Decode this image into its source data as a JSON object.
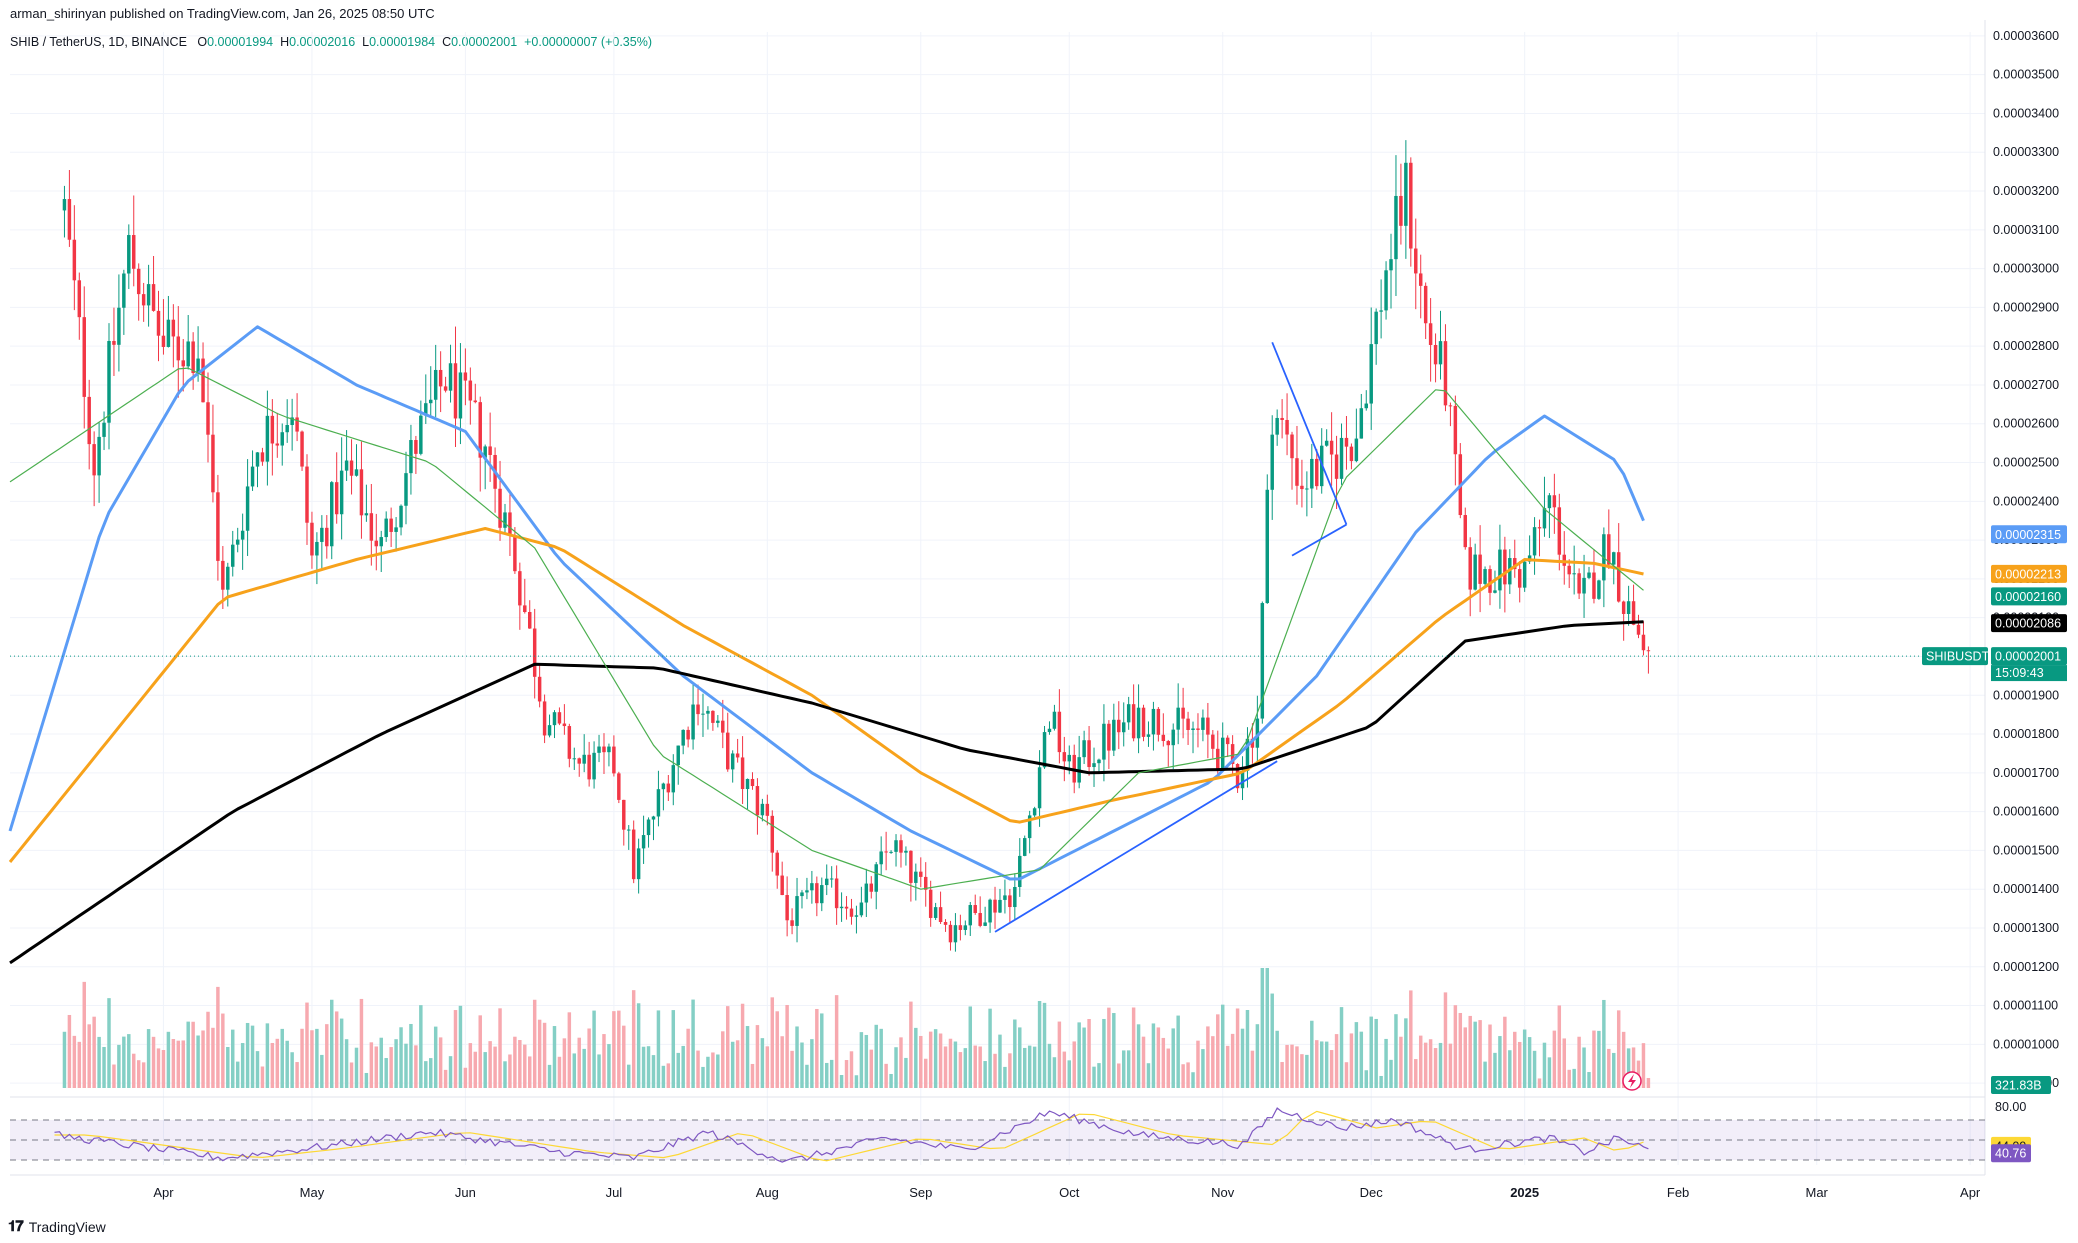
{
  "header": {
    "published_by": "arman_shirinyan published on TradingView.com, Jan 26, 2025 08:50 UTC"
  },
  "symbol_bar": {
    "symbol": "SHIB / TetherUS, 1D, BINANCE",
    "open_label": "O",
    "open": "0.00001994",
    "high_label": "H",
    "high": "0.00002016",
    "low_label": "L",
    "low": "0.00001984",
    "close_label": "C",
    "close": "0.00002001",
    "change": "+0.00000007 (+0.35%)"
  },
  "footer": {
    "brand": "TradingView"
  },
  "colors": {
    "up": "#089981",
    "down": "#f23645",
    "up_vol": "#84cfc5",
    "down_vol": "#f7a9af",
    "ma_blue": "#5b9cf6",
    "ma_orange": "#f7a21b",
    "ma_black": "#000000",
    "ma_green": "#4caf50",
    "rsi_line": "#7e57c2",
    "rsi_ma": "#fdd835",
    "trendline": "#2962ff"
  },
  "chart_data": {
    "type": "candlestick",
    "price_axis": {
      "range": [
        8.9e-06,
        3.61e-05
      ],
      "ticks": [
        "0.00003600",
        "0.00003500",
        "0.00003400",
        "0.00003300",
        "0.00003200",
        "0.00003100",
        "0.00003000",
        "0.00002900",
        "0.00002800",
        "0.00002700",
        "0.00002600",
        "0.00002500",
        "0.00002400",
        "0.00002300",
        "0.00002200",
        "0.00002100",
        "0.00002000",
        "0.00001900",
        "0.00001800",
        "0.00001700",
        "0.00001600",
        "0.00001500",
        "0.00001400",
        "0.00001300",
        "0.00001200",
        "0.00001100",
        "0.00001000",
        "0.00000900"
      ]
    },
    "time_axis": {
      "labels": [
        "Apr",
        "May",
        "Jun",
        "Jul",
        "Aug",
        "Sep",
        "Oct",
        "Nov",
        "Dec",
        "2025",
        "Feb",
        "Mar",
        "Apr"
      ],
      "bold": "2025"
    },
    "price_keypoints": [
      [
        "2024-03-12",
        3.15e-05
      ],
      [
        "2024-03-18",
        2.5e-05
      ],
      [
        "2024-03-25",
        3.05e-05
      ],
      [
        "2024-04-01",
        2.8e-05
      ],
      [
        "2024-04-08",
        2.8e-05
      ],
      [
        "2024-04-13",
        2.15e-05
      ],
      [
        "2024-04-20",
        2.55e-05
      ],
      [
        "2024-04-27",
        2.65e-05
      ],
      [
        "2024-05-01",
        2.25e-05
      ],
      [
        "2024-05-08",
        2.48e-05
      ],
      [
        "2024-05-15",
        2.28e-05
      ],
      [
        "2024-05-22",
        2.55e-05
      ],
      [
        "2024-05-28",
        2.72e-05
      ],
      [
        "2024-06-05",
        2.55e-05
      ],
      [
        "2024-06-11",
        2.25e-05
      ],
      [
        "2024-06-17",
        1.85e-05
      ],
      [
        "2024-06-24",
        1.72e-05
      ],
      [
        "2024-07-01",
        1.72e-05
      ],
      [
        "2024-07-05",
        1.45e-05
      ],
      [
        "2024-07-12",
        1.7e-05
      ],
      [
        "2024-07-18",
        1.9e-05
      ],
      [
        "2024-07-25",
        1.72e-05
      ],
      [
        "2024-08-01",
        1.58e-05
      ],
      [
        "2024-08-05",
        1.32e-05
      ],
      [
        "2024-08-12",
        1.4e-05
      ],
      [
        "2024-08-20",
        1.35e-05
      ],
      [
        "2024-08-26",
        1.52e-05
      ],
      [
        "2024-09-01",
        1.4e-05
      ],
      [
        "2024-09-07",
        1.3e-05
      ],
      [
        "2024-09-14",
        1.35e-05
      ],
      [
        "2024-09-20",
        1.4e-05
      ],
      [
        "2024-09-27",
        1.85e-05
      ],
      [
        "2024-10-01",
        1.7e-05
      ],
      [
        "2024-10-08",
        1.78e-05
      ],
      [
        "2024-10-15",
        1.85e-05
      ],
      [
        "2024-10-22",
        1.82e-05
      ],
      [
        "2024-10-28",
        1.8e-05
      ],
      [
        "2024-11-04",
        1.7e-05
      ],
      [
        "2024-11-08",
        1.85e-05
      ],
      [
        "2024-11-11",
        2.65e-05
      ],
      [
        "2024-11-17",
        2.45e-05
      ],
      [
        "2024-11-23",
        2.5e-05
      ],
      [
        "2024-11-28",
        2.58e-05
      ],
      [
        "2024-12-04",
        3e-05
      ],
      [
        "2024-12-08",
        3.2e-05
      ],
      [
        "2024-12-12",
        2.85e-05
      ],
      [
        "2024-12-16",
        2.7e-05
      ],
      [
        "2024-12-20",
        2.22e-05
      ],
      [
        "2024-12-26",
        2.22e-05
      ],
      [
        "2025-01-01",
        2.22e-05
      ],
      [
        "2025-01-06",
        2.4e-05
      ],
      [
        "2025-01-12",
        2.12e-05
      ],
      [
        "2025-01-18",
        2.3e-05
      ],
      [
        "2025-01-21",
        2.15e-05
      ],
      [
        "2025-01-26",
        2e-05
      ]
    ],
    "moving_averages": [
      {
        "color_key": "ma_blue",
        "last_value": "0.00002315",
        "points": [
          [
            "2024-03-01",
            1.55e-05
          ],
          [
            "2024-03-20",
            2.35e-05
          ],
          [
            "2024-04-05",
            2.7e-05
          ],
          [
            "2024-04-20",
            2.85e-05
          ],
          [
            "2024-05-10",
            2.7e-05
          ],
          [
            "2024-06-01",
            2.58e-05
          ],
          [
            "2024-06-20",
            2.25e-05
          ],
          [
            "2024-07-15",
            1.95e-05
          ],
          [
            "2024-08-10",
            1.7e-05
          ],
          [
            "2024-08-30",
            1.55e-05
          ],
          [
            "2024-09-20",
            1.42e-05
          ],
          [
            "2024-10-10",
            1.55e-05
          ],
          [
            "2024-10-30",
            1.68e-05
          ],
          [
            "2024-11-20",
            1.95e-05
          ],
          [
            "2024-12-10",
            2.32e-05
          ],
          [
            "2024-12-25",
            2.52e-05
          ],
          [
            "2025-01-05",
            2.62e-05
          ],
          [
            "2025-01-20",
            2.5e-05
          ],
          [
            "2025-01-26",
            2.32e-05
          ]
        ]
      },
      {
        "color_key": "ma_orange",
        "last_value": "0.00002213",
        "points": [
          [
            "2024-03-01",
            1.47e-05
          ],
          [
            "2024-04-13",
            2.15e-05
          ],
          [
            "2024-05-10",
            2.25e-05
          ],
          [
            "2024-06-05",
            2.33e-05
          ],
          [
            "2024-06-20",
            2.28e-05
          ],
          [
            "2024-07-15",
            2.08e-05
          ],
          [
            "2024-08-10",
            1.9e-05
          ],
          [
            "2024-09-01",
            1.7e-05
          ],
          [
            "2024-09-20",
            1.57e-05
          ],
          [
            "2024-10-10",
            1.63e-05
          ],
          [
            "2024-11-05",
            1.7e-05
          ],
          [
            "2024-11-25",
            1.88e-05
          ],
          [
            "2024-12-15",
            2.1e-05
          ],
          [
            "2025-01-01",
            2.25e-05
          ],
          [
            "2025-01-15",
            2.24e-05
          ],
          [
            "2025-01-26",
            2.21e-05
          ]
        ]
      },
      {
        "color_key": "ma_black",
        "last_value": "0.00002086",
        "points": [
          [
            "2024-03-01",
            1.21e-05
          ],
          [
            "2024-04-15",
            1.6e-05
          ],
          [
            "2024-05-15",
            1.8e-05
          ],
          [
            "2024-06-15",
            1.98e-05
          ],
          [
            "2024-07-10",
            1.97e-05
          ],
          [
            "2024-08-10",
            1.88e-05
          ],
          [
            "2024-09-10",
            1.76e-05
          ],
          [
            "2024-10-05",
            1.7e-05
          ],
          [
            "2024-11-05",
            1.71e-05
          ],
          [
            "2024-12-01",
            1.82e-05
          ],
          [
            "2024-12-20",
            2.04e-05
          ],
          [
            "2025-01-10",
            2.08e-05
          ],
          [
            "2025-01-26",
            2.09e-05
          ]
        ]
      },
      {
        "color_key": "ma_green",
        "last_value": "0.00002160",
        "points": [
          [
            "2024-03-01",
            2.45e-05
          ],
          [
            "2024-04-05",
            2.75e-05
          ],
          [
            "2024-04-25",
            2.62e-05
          ],
          [
            "2024-05-25",
            2.5e-05
          ],
          [
            "2024-06-15",
            2.28e-05
          ],
          [
            "2024-07-10",
            1.75e-05
          ],
          [
            "2024-08-10",
            1.5e-05
          ],
          [
            "2024-09-01",
            1.4e-05
          ],
          [
            "2024-09-25",
            1.45e-05
          ],
          [
            "2024-10-15",
            1.7e-05
          ],
          [
            "2024-11-05",
            1.75e-05
          ],
          [
            "2024-11-25",
            2.45e-05
          ],
          [
            "2024-12-15",
            2.7e-05
          ],
          [
            "2025-01-05",
            2.38e-05
          ],
          [
            "2025-01-26",
            2.16e-05
          ]
        ]
      }
    ],
    "last_price": {
      "ticker": "SHIBUSDT",
      "value": "0.00002001",
      "countdown": "15:09:43"
    },
    "trendlines": [
      {
        "from": [
          "2024-09-16",
          1.29e-05
        ],
        "to": [
          "2024-11-12",
          1.73e-05
        ]
      },
      {
        "from": [
          "2024-11-11",
          2.81e-05
        ],
        "to": [
          "2024-11-26",
          2.34e-05
        ]
      },
      {
        "from": [
          "2024-11-15",
          2.26e-05
        ],
        "to": [
          "2024-11-26",
          2.34e-05
        ]
      }
    ],
    "volume": {
      "last_value": "321.83B"
    },
    "rsi": {
      "upper_label": "80.00",
      "ma_value": "44.09",
      "rsi_value": "40.76",
      "keypoints": [
        [
          "2024-03-10",
          55
        ],
        [
          "2024-04-13",
          32
        ],
        [
          "2024-05-01",
          42
        ],
        [
          "2024-05-25",
          58
        ],
        [
          "2024-06-20",
          38
        ],
        [
          "2024-07-05",
          32
        ],
        [
          "2024-07-20",
          58
        ],
        [
          "2024-08-05",
          28
        ],
        [
          "2024-08-25",
          52
        ],
        [
          "2024-09-10",
          40
        ],
        [
          "2024-09-27",
          78
        ],
        [
          "2024-10-15",
          55
        ],
        [
          "2024-11-05",
          45
        ],
        [
          "2024-11-12",
          80
        ],
        [
          "2024-11-25",
          62
        ],
        [
          "2024-12-06",
          70
        ],
        [
          "2024-12-20",
          40
        ],
        [
          "2025-01-06",
          52
        ],
        [
          "2025-01-13",
          38
        ],
        [
          "2025-01-20",
          52
        ],
        [
          "2025-01-26",
          40
        ]
      ]
    }
  }
}
